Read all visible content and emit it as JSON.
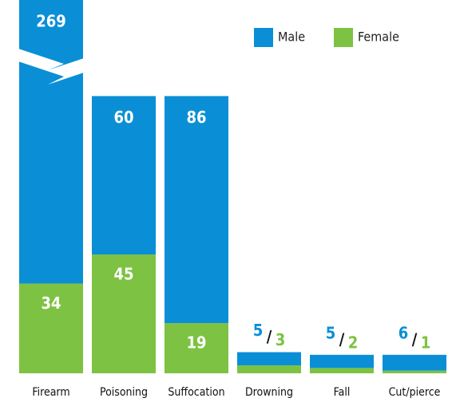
{
  "chart_data": {
    "type": "stacked_bar",
    "categories": [
      "Firearm",
      "Poisoning",
      "Suffocation",
      "Drowning",
      "Fall",
      "Cut/pierce"
    ],
    "series": [
      {
        "name": "Male",
        "color": "#0a8fd6",
        "values": [
          269,
          60,
          86,
          5,
          5,
          6
        ]
      },
      {
        "name": "Female",
        "color": "#7dc242",
        "values": [
          34,
          45,
          19,
          3,
          2,
          1
        ]
      }
    ],
    "legend": "top-right"
  }
}
